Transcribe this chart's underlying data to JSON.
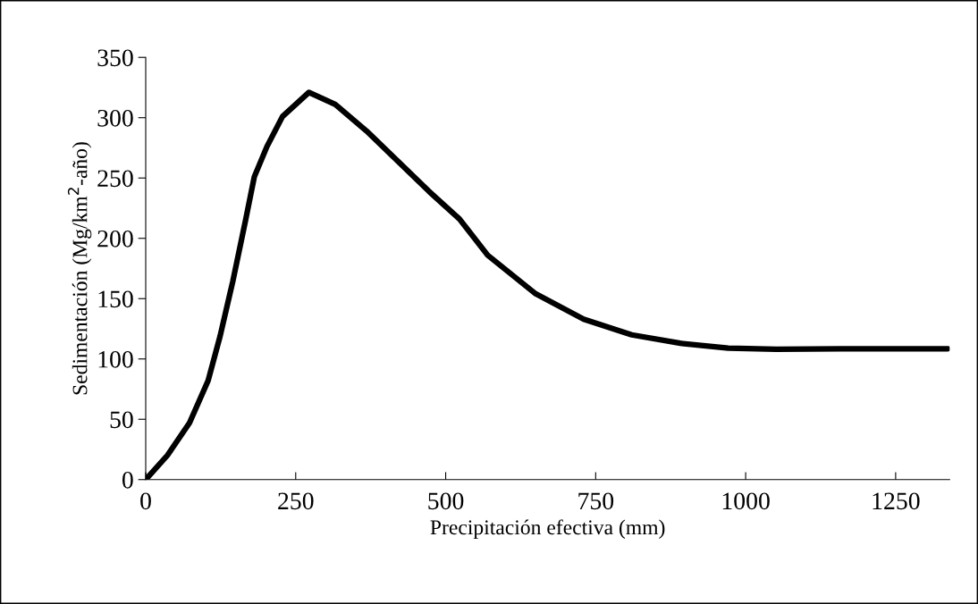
{
  "chart_data": {
    "type": "line",
    "xlabel": "Precipitación efectiva (mm)",
    "ylabel": "Sedimentación (Mg/km$^{2}$-año)",
    "xlim": [
      0,
      1340
    ],
    "xticks": [
      0,
      250,
      500,
      750,
      1000,
      1250
    ],
    "ylim": [
      0,
      350
    ],
    "yticks": [
      0,
      50,
      100,
      150,
      200,
      250,
      300,
      350
    ],
    "grid": false,
    "legend": false,
    "marker": "none",
    "line_style": "solid",
    "series": [
      {
        "color": "#000000",
        "x": [
          0,
          36,
          73,
          104,
          124,
          145,
          166,
          181,
          202,
          228,
          272,
          316,
          368,
          420,
          472,
          523,
          570,
          650,
          730,
          810,
          891,
          971,
          1051,
          1158,
          1337
        ],
        "values": [
          0,
          20,
          47,
          82,
          119,
          164,
          214,
          251,
          276,
          301,
          321,
          311,
          289,
          264,
          239,
          216,
          186,
          154,
          133,
          120,
          113,
          109,
          108,
          108.5,
          108.5
        ]
      }
    ]
  }
}
